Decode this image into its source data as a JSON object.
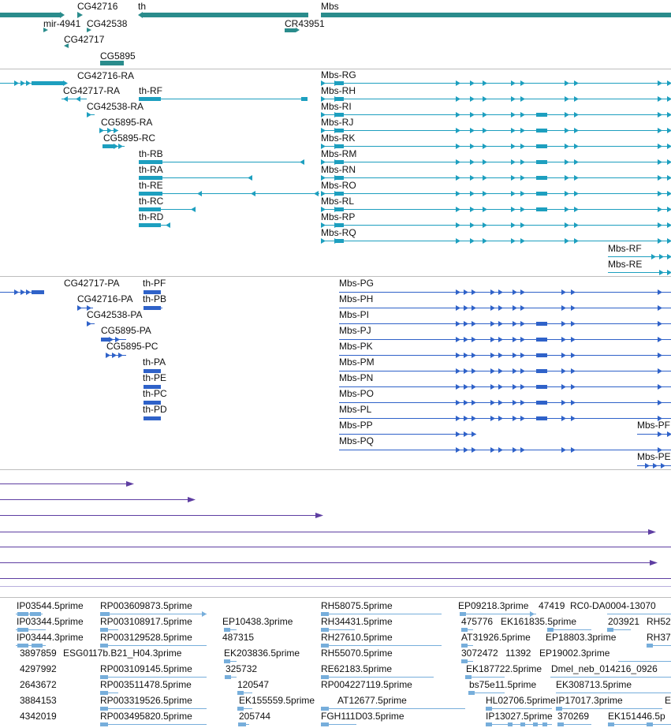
{
  "colors": {
    "gene": "#2a8c8c",
    "transcript": "#1d9fbf",
    "protein": "#2f62c9",
    "bac": "#5e3ea2",
    "est": "#77aedb",
    "separator": "#bdbdbd",
    "label": "#111111"
  },
  "gene_labels": [
    "CG42716",
    "th",
    "Mbs",
    "mir-4941",
    "CG42538",
    "CR43951",
    "CG42717",
    "CG5895"
  ],
  "transcript_labels": [
    "CG42716-RA",
    "CG42717-RA",
    "th-RF",
    "CG42538-RA",
    "CG5895-RA",
    "CG5895-RC",
    "th-RB",
    "th-RA",
    "th-RE",
    "th-RC",
    "th-RD",
    "Mbs-RG",
    "Mbs-RH",
    "Mbs-RI",
    "Mbs-RJ",
    "Mbs-RK",
    "Mbs-RM",
    "Mbs-RN",
    "Mbs-RO",
    "Mbs-RL",
    "Mbs-RP",
    "Mbs-RQ",
    "Mbs-RF",
    "Mbs-RE"
  ],
  "protein_labels": [
    "CG42717-PA",
    "th-PF",
    "CG42716-PA",
    "th-PB",
    "CG42538-PA",
    "CG5895-PA",
    "CG5895-PC",
    "th-PA",
    "th-PE",
    "th-PC",
    "th-PD",
    "Mbs-PG",
    "Mbs-PH",
    "Mbs-PI",
    "Mbs-PJ",
    "Mbs-PK",
    "Mbs-PM",
    "Mbs-PN",
    "Mbs-PO",
    "Mbs-PL",
    "Mbs-PP",
    "Mbs-PQ",
    "Mbs-PF",
    "Mbs-PE"
  ],
  "est_labels": [
    "IP03544.5prime",
    "RP003609873.5prime",
    "RH58075.5prime",
    "EP09218.3prime",
    "47419",
    "RC0-DA0004-13070",
    "IP03344.5prime",
    "RP003108917.5prime",
    "EP10438.3prime",
    "RH34431.5prime",
    "475776",
    "EK161835.5prime",
    "203921",
    "RH52",
    "IP03444.3prime",
    "RP003129528.5prime",
    "487315",
    "RH27610.5prime",
    "AT31926.5prime",
    "EP18803.3prime",
    "RH37",
    "3897859",
    "ESG01",
    "17b.B21_H04.3prime",
    "EK203836.5prime",
    "RH55070.5prime",
    "3072472",
    "11392",
    "EP19002.3prime",
    "4297992",
    "RP003109145.5prime",
    "325732",
    "RE62183.5prime",
    "EK187722.5prime",
    "Dmel_neb_014216_0926",
    "2643672",
    "RP003511478.5prime",
    "120547",
    "RP004227119.5prime",
    "bs75e11.5prime",
    "EK308713.5prime",
    "3884153",
    "RP003319526.5prime",
    "EK155559.5prime",
    "AT12677.5prime",
    "HL02706.5prime",
    "IP17017.3prime",
    "E",
    "4342019",
    "RP003495820.5prime",
    "205744",
    "FGH111D03.5prime",
    "IP13027.5prime",
    "370269",
    "EK151446.5p"
  ]
}
